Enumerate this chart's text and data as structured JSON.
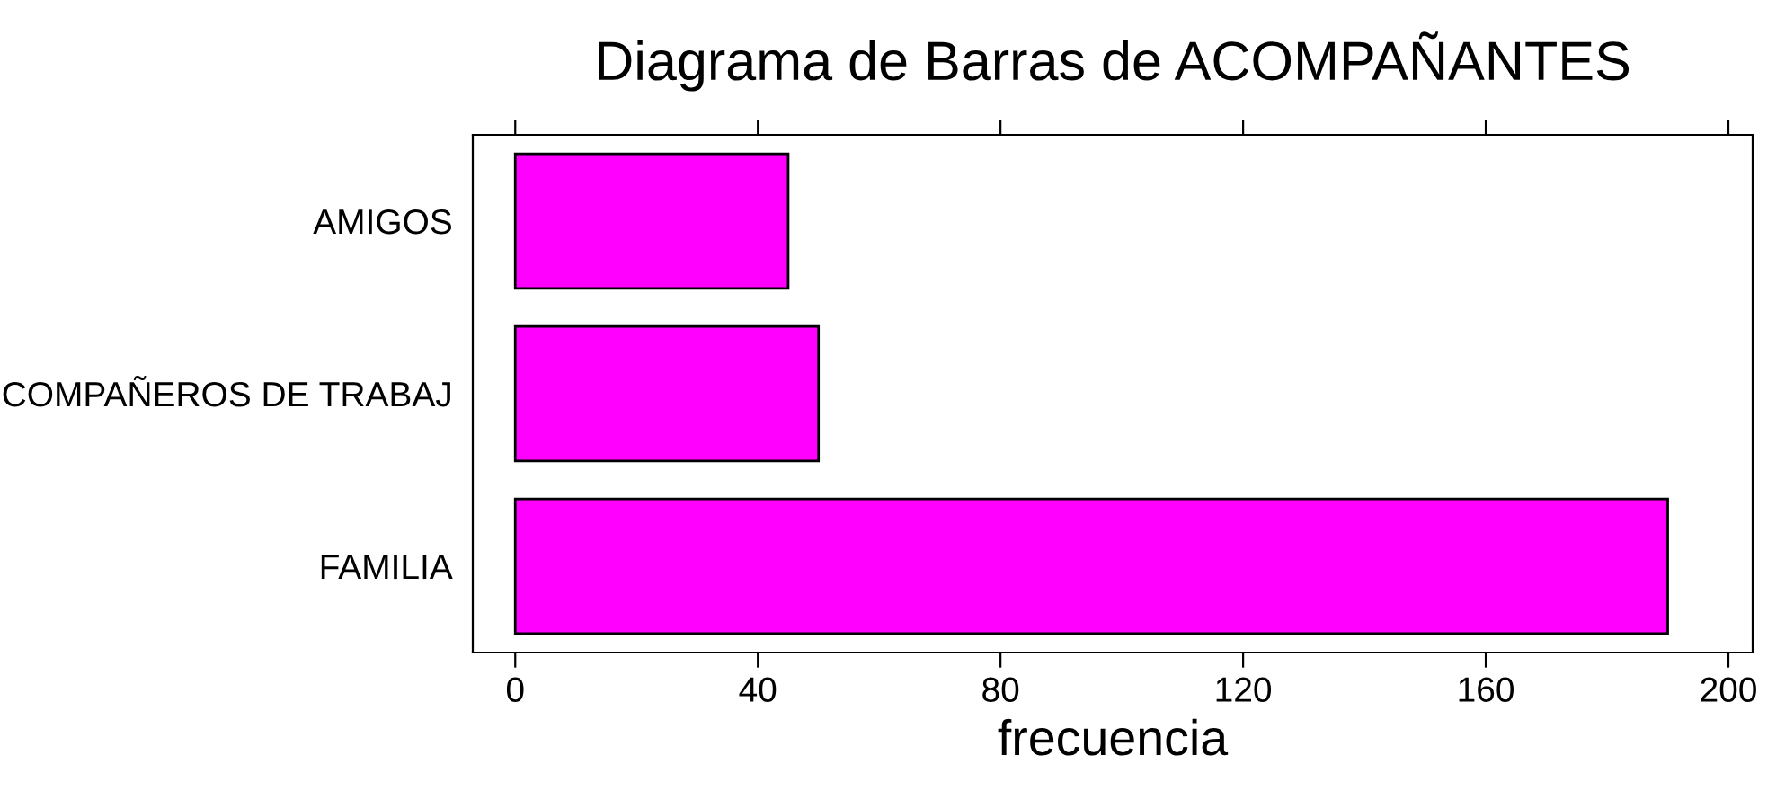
{
  "chart_data": {
    "type": "bar",
    "orientation": "horizontal",
    "title": "Diagrama de Barras de ACOMPAÑANTES",
    "xlabel": "frecuencia",
    "categories": [
      "AMIGOS",
      "COMPAÑEROS DE TRABAJ",
      "FAMILIA"
    ],
    "values": [
      45,
      50,
      190
    ],
    "color": "#ff00ff",
    "xlim": [
      -7,
      204
    ],
    "xticks": [
      0,
      40,
      80,
      120,
      160,
      200
    ],
    "grid": false
  }
}
